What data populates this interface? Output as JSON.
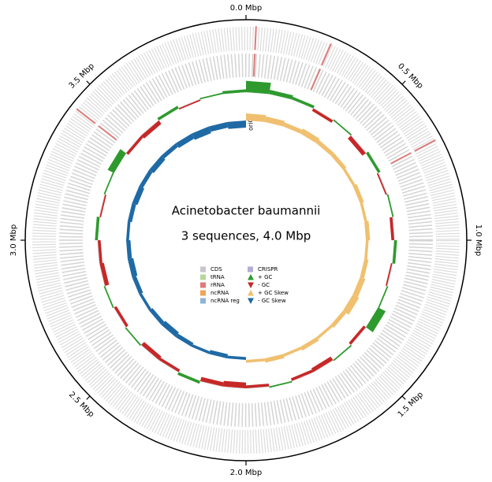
{
  "chart_data": {
    "type": "circular-genome",
    "title": "Acinetobacter baumannii",
    "subtitle": "3 sequences, 4.0 Mbp",
    "annotation": "oriC",
    "xlim": [
      0,
      4.0
    ],
    "xticks": [
      {
        "value": 0,
        "label": "0.0 Mbp"
      },
      {
        "value": 0.5,
        "label": "0.5 Mbp"
      },
      {
        "value": 1.0,
        "label": "1.0 Mbp"
      },
      {
        "value": 1.5,
        "label": "1.5 Mbp"
      },
      {
        "value": 2.0,
        "label": "2.0 Mbp"
      },
      {
        "value": 2.5,
        "label": "2.5 Mbp"
      },
      {
        "value": 3.0,
        "label": "3.0 Mbp"
      },
      {
        "value": 3.5,
        "label": "3.5 Mbp"
      }
    ],
    "legend": [
      {
        "name": "CDS",
        "color": "#c9c3cf",
        "shape": "square"
      },
      {
        "name": "tRNA",
        "color": "#b5d79a",
        "shape": "square"
      },
      {
        "name": "rRNA",
        "color": "#e07b7b",
        "shape": "square"
      },
      {
        "name": "ncRNA",
        "color": "#f0a45a",
        "shape": "square"
      },
      {
        "name": "ncRNA reg",
        "color": "#8fb3d9",
        "shape": "square"
      },
      {
        "name": "CRISPR",
        "color": "#b3acd9",
        "shape": "square"
      },
      {
        "name": "+ GC",
        "color": "#2e9a2e",
        "shape": "triangle-up"
      },
      {
        "name": "- GC",
        "color": "#c62828",
        "shape": "triangle-down"
      },
      {
        "name": "+ GC Skew",
        "color": "#f0c070",
        "shape": "triangle-up"
      },
      {
        "name": "- GC Skew",
        "color": "#1f6aa5",
        "shape": "triangle-down"
      }
    ],
    "rrna_positions": [
      0.03,
      0.26,
      0.69,
      3.42
    ],
    "ylim": [
      -0.1,
      0.1
    ],
    "x": [
      0.0,
      0.1,
      0.2,
      0.3,
      0.4,
      0.5,
      0.6,
      0.7,
      0.8,
      0.9,
      1.0,
      1.1,
      1.2,
      1.3,
      1.4,
      1.5,
      1.6,
      1.7,
      1.8,
      1.9,
      2.0,
      2.1,
      2.2,
      2.3,
      2.4,
      2.5,
      2.6,
      2.7,
      2.8,
      2.9,
      3.0,
      3.1,
      3.2,
      3.3,
      3.4,
      3.5,
      3.6,
      3.7,
      3.8,
      3.9
    ],
    "gc_content": [
      0.08,
      0.03,
      0.02,
      -0.02,
      0.01,
      -0.03,
      0.02,
      -0.01,
      0.01,
      -0.02,
      0.02,
      -0.01,
      0.01,
      0.06,
      -0.02,
      0.01,
      -0.03,
      -0.02,
      0.01,
      -0.02,
      -0.04,
      -0.03,
      0.02,
      -0.02,
      -0.03,
      0.01,
      -0.02,
      0.01,
      -0.03,
      -0.02,
      0.02,
      -0.01,
      0.01,
      0.05,
      -0.02,
      -0.03,
      0.02,
      -0.01,
      0.01,
      0.02
    ],
    "gc_skew": [
      0.05,
      0.04,
      0.03,
      0.04,
      0.03,
      0.03,
      0.02,
      0.03,
      0.02,
      0.03,
      0.02,
      0.03,
      0.04,
      0.05,
      0.03,
      0.02,
      0.03,
      0.02,
      0.03,
      0.02,
      -0.02,
      -0.03,
      -0.02,
      -0.03,
      -0.04,
      -0.03,
      -0.02,
      -0.03,
      -0.04,
      -0.03,
      -0.02,
      -0.03,
      -0.04,
      -0.03,
      -0.04,
      -0.03,
      -0.04,
      -0.05,
      -0.04,
      -0.05
    ]
  }
}
